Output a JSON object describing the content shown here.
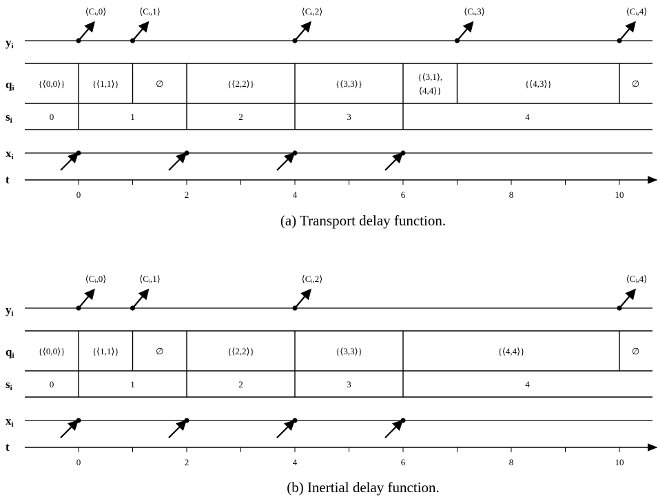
{
  "panels": [
    {
      "caption": "(a)  Transport delay function.",
      "row_labels": {
        "y": "y",
        "q": "q",
        "s": "s",
        "x": "x",
        "t": "t",
        "subscript": "i"
      },
      "y_events": [
        {
          "t": 0,
          "label": "⟨Cᵢ,0⟩"
        },
        {
          "t": 1,
          "label": "⟨Cᵢ,1⟩"
        },
        {
          "t": 4,
          "label": "⟨Cᵢ,2⟩"
        },
        {
          "t": 7,
          "label": "⟨Cᵢ,3⟩"
        },
        {
          "t": 10,
          "label": "⟨Cᵢ,4⟩"
        }
      ],
      "q_cells": [
        {
          "from": -1,
          "to": 0,
          "lines": [
            "{⟨0,0⟩}"
          ]
        },
        {
          "from": 0,
          "to": 1,
          "lines": [
            "{⟨1,1⟩}"
          ]
        },
        {
          "from": 1,
          "to": 2,
          "lines": [
            "∅"
          ]
        },
        {
          "from": 2,
          "to": 4,
          "lines": [
            "{⟨2,2⟩}"
          ]
        },
        {
          "from": 4,
          "to": 6,
          "lines": [
            "{⟨3,3⟩}"
          ]
        },
        {
          "from": 6,
          "to": 7,
          "lines": [
            "{⟨3,1⟩,",
            "⟨4,4⟩}"
          ]
        },
        {
          "from": 7,
          "to": 10,
          "lines": [
            "{⟨4,3⟩}"
          ]
        },
        {
          "from": 10,
          "to": 10.6,
          "lines": [
            "∅"
          ]
        }
      ],
      "s_cells": [
        {
          "from": -1,
          "to": 0,
          "label": "0"
        },
        {
          "from": 0,
          "to": 2,
          "label": "1"
        },
        {
          "from": 2,
          "to": 4,
          "label": "2"
        },
        {
          "from": 4,
          "to": 6,
          "label": "3"
        },
        {
          "from": 6,
          "to": 10.6,
          "label": "4"
        }
      ],
      "x_events": [
        0,
        2,
        4,
        6
      ],
      "t_ticks": [
        "0",
        "2",
        "4",
        "6",
        "8",
        "10"
      ]
    },
    {
      "caption": "(b)  Inertial delay function.",
      "row_labels": {
        "y": "y",
        "q": "q",
        "s": "s",
        "x": "x",
        "t": "t",
        "subscript": "i"
      },
      "y_events": [
        {
          "t": 0,
          "label": "⟨Cᵢ,0⟩"
        },
        {
          "t": 1,
          "label": "⟨Cᵢ,1⟩"
        },
        {
          "t": 4,
          "label": "⟨Cᵢ,2⟩"
        },
        {
          "t": 10,
          "label": "⟨Cᵢ,4⟩"
        }
      ],
      "q_cells": [
        {
          "from": -1,
          "to": 0,
          "lines": [
            "{⟨0,0⟩}"
          ]
        },
        {
          "from": 0,
          "to": 1,
          "lines": [
            "{⟨1,1⟩}"
          ]
        },
        {
          "from": 1,
          "to": 2,
          "lines": [
            "∅"
          ]
        },
        {
          "from": 2,
          "to": 4,
          "lines": [
            "{⟨2,2⟩}"
          ]
        },
        {
          "from": 4,
          "to": 6,
          "lines": [
            "{⟨3,3⟩}"
          ]
        },
        {
          "from": 6,
          "to": 10,
          "lines": [
            "{⟨4,4⟩}"
          ]
        },
        {
          "from": 10,
          "to": 10.6,
          "lines": [
            "∅"
          ]
        }
      ],
      "s_cells": [
        {
          "from": -1,
          "to": 0,
          "label": "0"
        },
        {
          "from": 0,
          "to": 2,
          "label": "1"
        },
        {
          "from": 2,
          "to": 4,
          "label": "2"
        },
        {
          "from": 4,
          "to": 6,
          "label": "3"
        },
        {
          "from": 6,
          "to": 10.6,
          "label": "4"
        }
      ],
      "x_events": [
        0,
        2,
        4,
        6
      ],
      "t_ticks": [
        "0",
        "2",
        "4",
        "6",
        "8",
        "10"
      ]
    }
  ]
}
